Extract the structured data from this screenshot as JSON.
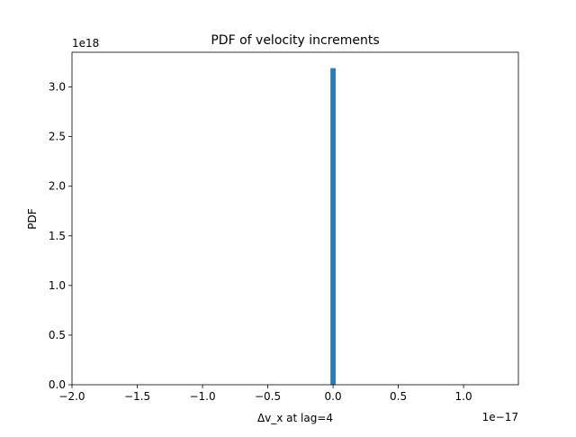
{
  "chart_data": {
    "type": "bar",
    "title": "PDF of velocity increments",
    "xlabel": "Δv_x at lag=4",
    "ylabel": "PDF",
    "x_offset_text": "1e−17",
    "y_offset_text": "1e18",
    "xlim": [
      -2.0,
      1.42
    ],
    "ylim": [
      0,
      3.35
    ],
    "x_ticks": [
      -2.0,
      -1.5,
      -1.0,
      -0.5,
      0.0,
      0.5,
      1.0
    ],
    "x_tick_labels": [
      "−2.0",
      "−1.5",
      "−1.0",
      "−0.5",
      "0.0",
      "0.5",
      "1.0"
    ],
    "y_ticks": [
      0.0,
      0.5,
      1.0,
      1.5,
      2.0,
      2.5,
      3.0
    ],
    "y_tick_labels": [
      "0.0",
      "0.5",
      "1.0",
      "1.5",
      "2.0",
      "2.5",
      "3.0"
    ],
    "grid": false,
    "bar_color": "#2b7bb9",
    "bins": [
      {
        "x0": -0.02,
        "x1": 0.02,
        "value": 3.19
      }
    ]
  }
}
